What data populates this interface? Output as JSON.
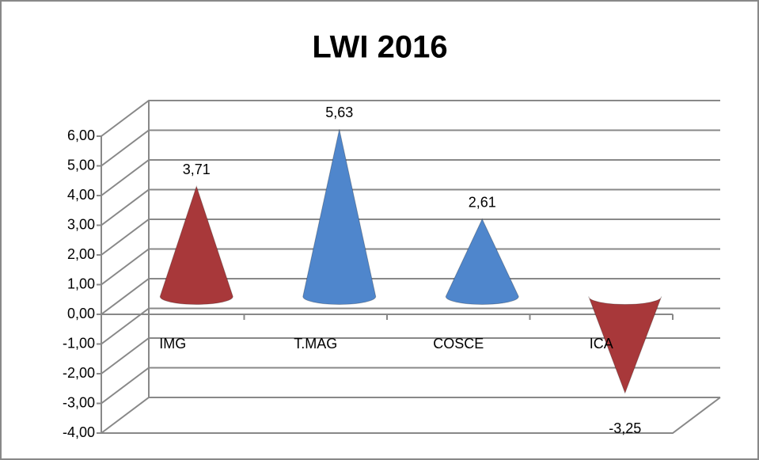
{
  "chart_data": {
    "type": "cone",
    "title": "LWI 2016",
    "categories": [
      "IMG",
      "T.MAG",
      "COSCE",
      "ICA"
    ],
    "values": [
      3.71,
      5.63,
      2.61,
      -3.25
    ],
    "value_labels": [
      "3,71",
      "5,63",
      "2,61",
      "-3,25"
    ],
    "colors": [
      "#a8383a",
      "#4f86cc",
      "#4f86cc",
      "#a8383a"
    ],
    "ylim": [
      -4,
      6
    ],
    "yticks": [
      {
        "value": -4,
        "label": "-4,00"
      },
      {
        "value": -3,
        "label": "-3,00"
      },
      {
        "value": -2,
        "label": "-2,00"
      },
      {
        "value": -1,
        "label": "-1,00"
      },
      {
        "value": 0,
        "label": "0,00"
      },
      {
        "value": 1,
        "label": "1,00"
      },
      {
        "value": 2,
        "label": "2,00"
      },
      {
        "value": 3,
        "label": "3,00"
      },
      {
        "value": 4,
        "label": "4,00"
      },
      {
        "value": 5,
        "label": "5,00"
      },
      {
        "value": 6,
        "label": "6,00"
      }
    ],
    "grid": true
  }
}
